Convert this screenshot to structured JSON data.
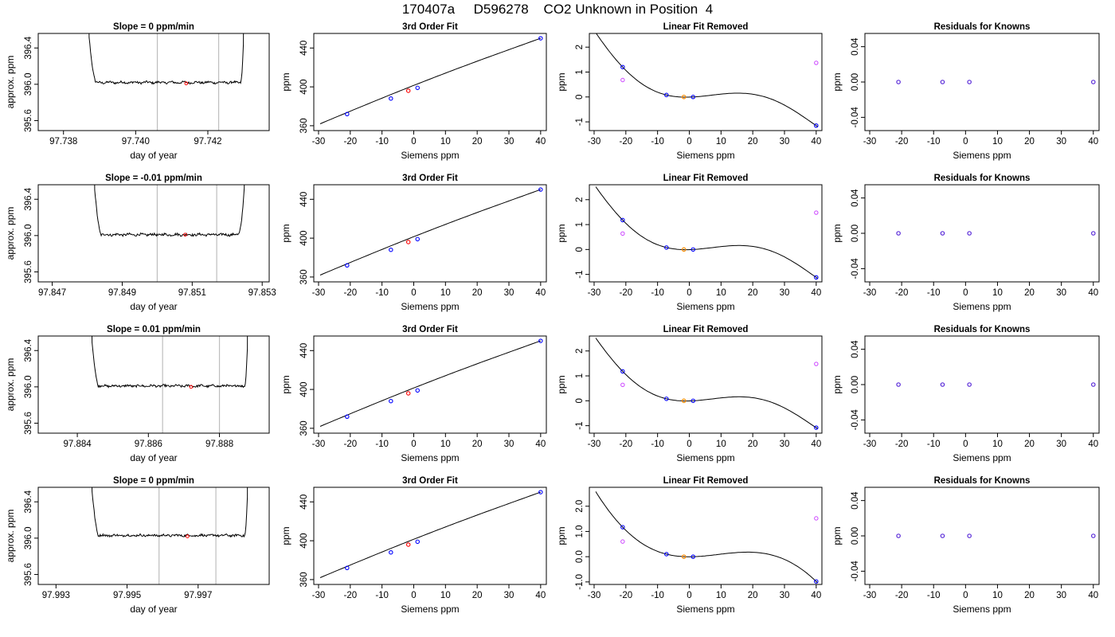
{
  "page": {
    "title": "170407a     D596278    CO2 Unknown in Position  4"
  },
  "chart_data": [
    {
      "type": "line",
      "title": "Slope =  0  ppm/min",
      "xlabel": "day of year",
      "ylabel": "approx. ppm",
      "xlim": [
        97.7373,
        97.7437
      ],
      "ylim": [
        395.49,
        396.56
      ],
      "xticks": [
        97.738,
        97.74,
        97.742
      ],
      "xtick_labels": [
        "97.738",
        "97.740",
        "97.742"
      ],
      "yticks": [
        395.6,
        396.0,
        396.4
      ],
      "ytick_labels": [
        "395.6",
        "396.0",
        "396.4"
      ],
      "vlines": [
        97.7406,
        97.7423
      ],
      "marker": {
        "x": 97.7414,
        "y": 396.01
      },
      "trace": {
        "x0": 97.7385,
        "x1": 97.7431,
        "rise_start": 97.7387,
        "plateau_start": 97.7389,
        "plateau_end": 97.7429,
        "rise_end": 97.743,
        "level": 396.02,
        "noise": 0.012
      }
    },
    {
      "type": "line",
      "xlabel": "Siemens ppm",
      "ylabel": "ppm",
      "title": "3rd Order Fit",
      "xlim": [
        -31.5,
        41.8
      ],
      "ylim": [
        355,
        455
      ],
      "xticks": [
        -30,
        -20,
        -10,
        0,
        10,
        20,
        30,
        40
      ],
      "xtick_labels": [
        "-30",
        "-20",
        "-10",
        "0",
        "10",
        "20",
        "30",
        "40"
      ],
      "yticks": [
        360,
        400,
        440
      ],
      "ytick_labels": [
        "360",
        "400",
        "440"
      ],
      "line": {
        "x0": -29.5,
        "y0": 362,
        "x1": 40,
        "y1": 450,
        "bulge": 2.2
      },
      "knowns": {
        "x": [
          -21,
          -7.2,
          1.2,
          40
        ],
        "y": [
          372,
          388,
          399,
          450
        ]
      },
      "unknown": {
        "x": -1.7,
        "y": 396
      }
    },
    {
      "type": "line",
      "xlabel": "Siemens ppm",
      "ylabel": "ppm",
      "title": "Linear Fit Removed",
      "xlim": [
        -31.5,
        41.8
      ],
      "ylim": [
        -1.35,
        2.55
      ],
      "xticks": [
        -30,
        -20,
        -10,
        0,
        10,
        20,
        30,
        40
      ],
      "xtick_labels": [
        "-30",
        "-20",
        "-10",
        "0",
        "10",
        "20",
        "30",
        "40"
      ],
      "yticks": [
        -1,
        0,
        1,
        2
      ],
      "ytick_labels": [
        "-1",
        "0",
        "1",
        "2"
      ],
      "curve": {
        "x": [
          -29.5,
          -21,
          -7.2,
          1.2,
          18,
          40
        ],
        "y": [
          2.58,
          1.2,
          0.08,
          0.0,
          0.14,
          -1.15
        ]
      },
      "knowns": {
        "x": [
          -21,
          -7.2,
          1.2,
          40
        ],
        "y": [
          1.2,
          0.08,
          0.0,
          -1.15
        ]
      },
      "unknown": {
        "x": -1.7,
        "y": 0.0
      },
      "residual_points": {
        "x": [
          -21,
          40
        ],
        "y": [
          0.68,
          1.37
        ]
      }
    },
    {
      "type": "scatter",
      "xlabel": "Siemens ppm",
      "ylabel": "ppm",
      "title": "Residuals for Knowns",
      "xlim": [
        -31.5,
        41.8
      ],
      "ylim": [
        -0.055,
        0.055
      ],
      "xticks": [
        -30,
        -20,
        -10,
        0,
        10,
        20,
        30,
        40
      ],
      "xtick_labels": [
        "-30",
        "-20",
        "-10",
        "0",
        "10",
        "20",
        "30",
        "40"
      ],
      "yticks": [
        -0.04,
        0.0,
        0.04
      ],
      "ytick_labels": [
        "-0.04",
        "0.00",
        "0.04"
      ],
      "points": {
        "x": [
          -21,
          -7.2,
          1.2,
          40
        ],
        "y": [
          0,
          0,
          0,
          0
        ]
      }
    },
    {
      "type": "line",
      "title": "Slope =  -0.01  ppm/min",
      "xlabel": "day of year",
      "ylabel": "approx. ppm",
      "xlim": [
        97.8466,
        97.8532
      ],
      "ylim": [
        395.49,
        396.56
      ],
      "xticks": [
        97.847,
        97.849,
        97.851,
        97.853
      ],
      "xtick_labels": [
        "97.847",
        "97.849",
        "97.851",
        "97.853"
      ],
      "yticks": [
        395.6,
        396.0,
        396.4
      ],
      "ytick_labels": [
        "395.6",
        "396.0",
        "396.4"
      ],
      "vlines": [
        97.85,
        97.8517
      ],
      "marker": {
        "x": 97.8508,
        "y": 396.01
      },
      "trace": {
        "x0": 97.8481,
        "x1": 97.8526,
        "rise_start": 97.8482,
        "plateau_start": 97.8484,
        "plateau_end": 97.8523,
        "rise_end": 97.8525,
        "level": 396.01,
        "noise": 0.013
      }
    },
    {
      "type": "line",
      "xlabel": "Siemens ppm",
      "ylabel": "ppm",
      "title": "3rd Order Fit",
      "xlim": [
        -31.5,
        41.8
      ],
      "ylim": [
        355,
        455
      ],
      "xticks": [
        -30,
        -20,
        -10,
        0,
        10,
        20,
        30,
        40
      ],
      "xtick_labels": [
        "-30",
        "-20",
        "-10",
        "0",
        "10",
        "20",
        "30",
        "40"
      ],
      "yticks": [
        360,
        400,
        440
      ],
      "ytick_labels": [
        "360",
        "400",
        "440"
      ],
      "line": {
        "x0": -29.5,
        "y0": 362,
        "x1": 40,
        "y1": 450,
        "bulge": 2.2
      },
      "knowns": {
        "x": [
          -21,
          -7.2,
          1.2,
          40
        ],
        "y": [
          372,
          388,
          399,
          450
        ]
      },
      "unknown": {
        "x": -1.7,
        "y": 396
      }
    },
    {
      "type": "line",
      "xlabel": "Siemens ppm",
      "ylabel": "ppm",
      "title": "Linear Fit Removed",
      "xlim": [
        -31.5,
        41.8
      ],
      "ylim": [
        -1.3,
        2.6
      ],
      "xticks": [
        -30,
        -20,
        -10,
        0,
        10,
        20,
        30,
        40
      ],
      "xtick_labels": [
        "-30",
        "-20",
        "-10",
        "0",
        "10",
        "20",
        "30",
        "40"
      ],
      "yticks": [
        -1,
        0,
        1,
        2
      ],
      "ytick_labels": [
        "-1",
        "0",
        "1",
        "2"
      ],
      "curve": {
        "x": [
          -29.5,
          -21,
          -7.2,
          1.2,
          18,
          40
        ],
        "y": [
          2.52,
          1.18,
          0.08,
          0.0,
          0.15,
          -1.12
        ]
      },
      "knowns": {
        "x": [
          -21,
          -7.2,
          1.2,
          40
        ],
        "y": [
          1.18,
          0.08,
          0.0,
          -1.12
        ]
      },
      "unknown": {
        "x": -1.7,
        "y": 0.0
      },
      "residual_points": {
        "x": [
          -21,
          40
        ],
        "y": [
          0.64,
          1.48
        ]
      }
    },
    {
      "type": "scatter",
      "xlabel": "Siemens ppm",
      "ylabel": "ppm",
      "title": "Residuals for Knowns",
      "xlim": [
        -31.5,
        41.8
      ],
      "ylim": [
        -0.055,
        0.055
      ],
      "xticks": [
        -30,
        -20,
        -10,
        0,
        10,
        20,
        30,
        40
      ],
      "xtick_labels": [
        "-30",
        "-20",
        "-10",
        "0",
        "10",
        "20",
        "30",
        "40"
      ],
      "yticks": [
        -0.04,
        0.0,
        0.04
      ],
      "ytick_labels": [
        "-0.04",
        "0.00",
        "0.04"
      ],
      "points": {
        "x": [
          -21,
          -7.2,
          1.2,
          40
        ],
        "y": [
          0,
          0,
          0,
          0
        ]
      }
    },
    {
      "type": "line",
      "title": "Slope =  0.01  ppm/min",
      "xlabel": "day of year",
      "ylabel": "approx. ppm",
      "xlim": [
        97.8829,
        97.8894
      ],
      "ylim": [
        395.49,
        396.56
      ],
      "xticks": [
        97.884,
        97.886,
        97.888
      ],
      "xtick_labels": [
        "97.884",
        "97.886",
        "97.888"
      ],
      "yticks": [
        395.6,
        396.0,
        396.4
      ],
      "ytick_labels": [
        "395.6",
        "396.0",
        "396.4"
      ],
      "vlines": [
        97.8864,
        97.888
      ],
      "marker": {
        "x": 97.8872,
        "y": 396.0
      },
      "trace": {
        "x0": 97.8843,
        "x1": 97.8889,
        "rise_start": 97.8844,
        "plateau_start": 97.8846,
        "plateau_end": 97.8887,
        "rise_end": 97.8888,
        "level": 396.01,
        "noise": 0.012
      }
    },
    {
      "type": "line",
      "xlabel": "Siemens ppm",
      "ylabel": "ppm",
      "title": "3rd Order Fit",
      "xlim": [
        -31.5,
        41.8
      ],
      "ylim": [
        355,
        455
      ],
      "xticks": [
        -30,
        -20,
        -10,
        0,
        10,
        20,
        30,
        40
      ],
      "xtick_labels": [
        "-30",
        "-20",
        "-10",
        "0",
        "10",
        "20",
        "30",
        "40"
      ],
      "yticks": [
        360,
        400,
        440
      ],
      "ytick_labels": [
        "360",
        "400",
        "440"
      ],
      "line": {
        "x0": -29.5,
        "y0": 362,
        "x1": 40,
        "y1": 450,
        "bulge": 2.2
      },
      "knowns": {
        "x": [
          -21,
          -7.2,
          1.2,
          40
        ],
        "y": [
          372,
          388,
          399,
          450
        ]
      },
      "unknown": {
        "x": -1.7,
        "y": 396
      }
    },
    {
      "type": "line",
      "xlabel": "Siemens ppm",
      "ylabel": "ppm",
      "title": "Linear Fit Removed",
      "xlim": [
        -31.5,
        41.8
      ],
      "ylim": [
        -1.3,
        2.6
      ],
      "xticks": [
        -30,
        -20,
        -10,
        0,
        10,
        20,
        30,
        40
      ],
      "xtick_labels": [
        "-30",
        "-20",
        "-10",
        "0",
        "10",
        "20",
        "30",
        "40"
      ],
      "yticks": [
        -1,
        0,
        1,
        2
      ],
      "ytick_labels": [
        "-1",
        "0",
        "1",
        "2"
      ],
      "curve": {
        "x": [
          -29.5,
          -21,
          -7.2,
          1.2,
          18,
          40
        ],
        "y": [
          2.52,
          1.18,
          0.08,
          0.0,
          0.15,
          -1.08
        ]
      },
      "knowns": {
        "x": [
          -21,
          -7.2,
          1.2,
          40
        ],
        "y": [
          1.18,
          0.08,
          0.0,
          -1.08
        ]
      },
      "unknown": {
        "x": -1.7,
        "y": 0.0
      },
      "residual_points": {
        "x": [
          -21,
          40
        ],
        "y": [
          0.64,
          1.48
        ]
      }
    },
    {
      "type": "scatter",
      "xlabel": "Siemens ppm",
      "ylabel": "ppm",
      "title": "Residuals for Knowns",
      "xlim": [
        -31.5,
        41.8
      ],
      "ylim": [
        -0.055,
        0.055
      ],
      "xticks": [
        -30,
        -20,
        -10,
        0,
        10,
        20,
        30,
        40
      ],
      "xtick_labels": [
        "-30",
        "-20",
        "-10",
        "0",
        "10",
        "20",
        "30",
        "40"
      ],
      "yticks": [
        -0.04,
        0.0,
        0.04
      ],
      "ytick_labels": [
        "-0.04",
        "0.00",
        "0.04"
      ],
      "points": {
        "x": [
          -21,
          -7.2,
          1.2,
          40
        ],
        "y": [
          0,
          0,
          0,
          0
        ]
      }
    },
    {
      "type": "line",
      "title": "Slope =  0  ppm/min",
      "xlabel": "day of year",
      "ylabel": "approx. ppm",
      "xlim": [
        97.9925,
        97.999
      ],
      "ylim": [
        395.49,
        396.56
      ],
      "xticks": [
        97.993,
        97.995,
        97.997
      ],
      "xtick_labels": [
        "97.993",
        "97.995",
        "97.997"
      ],
      "yticks": [
        395.6,
        396.0,
        396.4
      ],
      "ytick_labels": [
        "395.6",
        "396.0",
        "396.4"
      ],
      "vlines": [
        97.9959,
        97.9975
      ],
      "marker": {
        "x": 97.9967,
        "y": 396.02
      },
      "trace": {
        "x0": 97.9939,
        "x1": 97.9985,
        "rise_start": 97.994,
        "plateau_start": 97.9942,
        "plateau_end": 97.9983,
        "rise_end": 97.9984,
        "level": 396.03,
        "noise": 0.012
      }
    },
    {
      "type": "line",
      "xlabel": "Siemens ppm",
      "ylabel": "ppm",
      "title": "3rd Order Fit",
      "xlim": [
        -31.5,
        41.8
      ],
      "ylim": [
        355,
        455
      ],
      "xticks": [
        -30,
        -20,
        -10,
        0,
        10,
        20,
        30,
        40
      ],
      "xtick_labels": [
        "-30",
        "-20",
        "-10",
        "0",
        "10",
        "20",
        "30",
        "40"
      ],
      "yticks": [
        360,
        400,
        440
      ],
      "ytick_labels": [
        "360",
        "400",
        "440"
      ],
      "line": {
        "x0": -29.5,
        "y0": 362,
        "x1": 40,
        "y1": 450,
        "bulge": 2.2
      },
      "knowns": {
        "x": [
          -21,
          -7.2,
          1.2,
          40
        ],
        "y": [
          372,
          388,
          399,
          450
        ]
      },
      "unknown": {
        "x": -1.7,
        "y": 396
      }
    },
    {
      "type": "line",
      "xlabel": "Siemens ppm",
      "ylabel": "ppm",
      "title": "Linear Fit Removed",
      "xlim": [
        -31.5,
        41.8
      ],
      "ylim": [
        -1.1,
        2.75
      ],
      "xticks": [
        -30,
        -20,
        -10,
        0,
        10,
        20,
        30,
        40
      ],
      "xtick_labels": [
        "-30",
        "-20",
        "-10",
        "0",
        "10",
        "20",
        "30",
        "40"
      ],
      "yticks": [
        -1.0,
        0.0,
        1.0,
        2.0
      ],
      "ytick_labels": [
        "-1.0",
        "0.0",
        "1.0",
        "2.0"
      ],
      "curve": {
        "x": [
          -29.5,
          -21,
          -7.2,
          1.2,
          18,
          40
        ],
        "y": [
          2.58,
          1.17,
          0.1,
          0.0,
          0.18,
          -0.98
        ]
      },
      "knowns": {
        "x": [
          -21,
          -7.2,
          1.2,
          40
        ],
        "y": [
          1.17,
          0.1,
          0.0,
          -0.98
        ]
      },
      "unknown": {
        "x": -1.7,
        "y": 0.0
      },
      "residual_points": {
        "x": [
          -21,
          40
        ],
        "y": [
          0.6,
          1.52
        ]
      }
    },
    {
      "type": "scatter",
      "xlabel": "Siemens ppm",
      "ylabel": "ppm",
      "title": "Residuals for Knowns",
      "xlim": [
        -31.5,
        41.8
      ],
      "ylim": [
        -0.055,
        0.055
      ],
      "xticks": [
        -30,
        -20,
        -10,
        0,
        10,
        20,
        30,
        40
      ],
      "xtick_labels": [
        "-30",
        "-20",
        "-10",
        "0",
        "10",
        "20",
        "30",
        "40"
      ],
      "yticks": [
        -0.04,
        0.0,
        0.04
      ],
      "ytick_labels": [
        "-0.04",
        "0.00",
        "0.04"
      ],
      "points": {
        "x": [
          -21,
          -7.2,
          1.2,
          40
        ],
        "y": [
          0,
          0,
          0,
          0
        ]
      }
    }
  ],
  "colors": {
    "known_marker": "#0000ff",
    "unknown_marker": "#ff0000",
    "removed_unknown": "#ff8c00",
    "residual_marker": "#cc44ff",
    "vline": "#bebebe",
    "line": "#000000"
  }
}
